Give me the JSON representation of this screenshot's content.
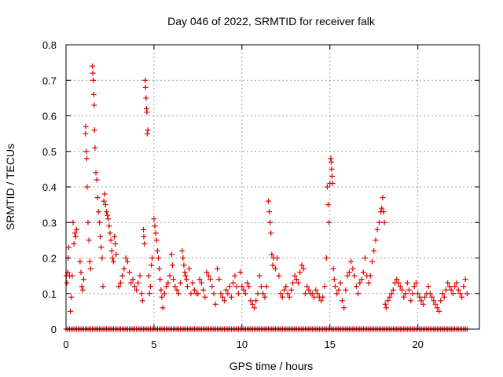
{
  "chart_data": {
    "type": "scatter",
    "title": "Day 046 of 2022, SRMTID for receiver falk",
    "xlabel": "GPS time / hours",
    "ylabel": "SRMTID / TECUs",
    "xlim": [
      0,
      23.5
    ],
    "ylim": [
      0,
      0.8
    ],
    "xticks": [
      0,
      5,
      10,
      15,
      20
    ],
    "yticks": [
      0,
      0.1,
      0.2,
      0.3,
      0.4,
      0.5,
      0.6,
      0.7,
      0.8
    ],
    "xtick_labels": [
      "0",
      "5",
      "10",
      "15",
      "20"
    ],
    "ytick_labels": [
      "0",
      "0.1",
      "0.2",
      "0.3",
      "0.4",
      "0.5",
      "0.6",
      "0.7",
      "0.8"
    ],
    "grid": true,
    "marker": "+",
    "color": "#e00000",
    "zero_series": {
      "start": 0.0,
      "end": 22.8,
      "step": 0.1,
      "value": 0
    },
    "series": [
      {
        "name": "SRMTID",
        "points": [
          [
            0.02,
            0.15
          ],
          [
            0.05,
            0.13
          ],
          [
            0.1,
            0.16
          ],
          [
            0.12,
            0.2
          ],
          [
            0.15,
            0.23
          ],
          [
            0.2,
            0.15
          ],
          [
            0.25,
            0.05
          ],
          [
            0.3,
            0.09
          ],
          [
            0.35,
            0.15
          ],
          [
            0.4,
            0.3
          ],
          [
            0.45,
            0.24
          ],
          [
            0.5,
            0.27
          ],
          [
            0.55,
            0.26
          ],
          [
            0.6,
            0.28
          ],
          [
            0.8,
            0.19
          ],
          [
            0.85,
            0.16
          ],
          [
            0.9,
            0.12
          ],
          [
            0.95,
            0.11
          ],
          [
            1.0,
            0.14
          ],
          [
            1.1,
            0.55
          ],
          [
            1.12,
            0.57
          ],
          [
            1.15,
            0.5
          ],
          [
            1.18,
            0.48
          ],
          [
            1.2,
            0.4
          ],
          [
            1.25,
            0.3
          ],
          [
            1.3,
            0.25
          ],
          [
            1.35,
            0.19
          ],
          [
            1.4,
            0.17
          ],
          [
            1.5,
            0.74
          ],
          [
            1.52,
            0.72
          ],
          [
            1.55,
            0.7
          ],
          [
            1.58,
            0.66
          ],
          [
            1.6,
            0.63
          ],
          [
            1.62,
            0.56
          ],
          [
            1.65,
            0.51
          ],
          [
            1.7,
            0.44
          ],
          [
            1.75,
            0.42
          ],
          [
            1.8,
            0.37
          ],
          [
            1.85,
            0.33
          ],
          [
            1.9,
            0.3
          ],
          [
            1.95,
            0.26
          ],
          [
            2.0,
            0.23
          ],
          [
            2.05,
            0.2
          ],
          [
            2.1,
            0.12
          ],
          [
            2.15,
            0.36
          ],
          [
            2.2,
            0.38
          ],
          [
            2.25,
            0.35
          ],
          [
            2.3,
            0.33
          ],
          [
            2.35,
            0.32
          ],
          [
            2.4,
            0.31
          ],
          [
            2.45,
            0.29
          ],
          [
            2.5,
            0.27
          ],
          [
            2.55,
            0.25
          ],
          [
            2.6,
            0.22
          ],
          [
            2.65,
            0.2
          ],
          [
            2.7,
            0.19
          ],
          [
            2.75,
            0.26
          ],
          [
            2.8,
            0.24
          ],
          [
            2.85,
            0.21
          ],
          [
            3.0,
            0.12
          ],
          [
            3.1,
            0.13
          ],
          [
            3.2,
            0.15
          ],
          [
            3.3,
            0.17
          ],
          [
            3.4,
            0.2
          ],
          [
            3.5,
            0.19
          ],
          [
            3.6,
            0.16
          ],
          [
            3.7,
            0.13
          ],
          [
            3.8,
            0.14
          ],
          [
            3.9,
            0.12
          ],
          [
            4.0,
            0.11
          ],
          [
            4.1,
            0.13
          ],
          [
            4.2,
            0.15
          ],
          [
            4.3,
            0.1
          ],
          [
            4.35,
            0.08
          ],
          [
            4.4,
            0.28
          ],
          [
            4.42,
            0.26
          ],
          [
            4.45,
            0.24
          ],
          [
            4.5,
            0.7
          ],
          [
            4.52,
            0.68
          ],
          [
            4.55,
            0.65
          ],
          [
            4.58,
            0.62
          ],
          [
            4.6,
            0.61
          ],
          [
            4.62,
            0.55
          ],
          [
            4.65,
            0.56
          ],
          [
            4.7,
            0.15
          ],
          [
            4.75,
            0.1
          ],
          [
            4.8,
            0.12
          ],
          [
            4.85,
            0.18
          ],
          [
            4.9,
            0.2
          ],
          [
            5.0,
            0.31
          ],
          [
            5.05,
            0.29
          ],
          [
            5.1,
            0.27
          ],
          [
            5.15,
            0.25
          ],
          [
            5.2,
            0.22
          ],
          [
            5.25,
            0.2
          ],
          [
            5.3,
            0.17
          ],
          [
            5.35,
            0.14
          ],
          [
            5.4,
            0.11
          ],
          [
            5.45,
            0.09
          ],
          [
            5.5,
            0.06
          ],
          [
            5.6,
            0.1
          ],
          [
            5.7,
            0.12
          ],
          [
            5.8,
            0.13
          ],
          [
            5.9,
            0.15
          ],
          [
            6.0,
            0.21
          ],
          [
            6.05,
            0.18
          ],
          [
            6.1,
            0.14
          ],
          [
            6.2,
            0.12
          ],
          [
            6.3,
            0.11
          ],
          [
            6.4,
            0.1
          ],
          [
            6.5,
            0.13
          ],
          [
            6.6,
            0.22
          ],
          [
            6.65,
            0.2
          ],
          [
            6.7,
            0.18
          ],
          [
            6.75,
            0.16
          ],
          [
            6.8,
            0.15
          ],
          [
            6.85,
            0.14
          ],
          [
            6.9,
            0.12
          ],
          [
            7.0,
            0.17
          ],
          [
            7.1,
            0.1
          ],
          [
            7.2,
            0.13
          ],
          [
            7.3,
            0.11
          ],
          [
            7.4,
            0.1
          ],
          [
            7.5,
            0.1
          ],
          [
            7.6,
            0.14
          ],
          [
            7.7,
            0.13
          ],
          [
            7.8,
            0.11
          ],
          [
            7.9,
            0.09
          ],
          [
            8.0,
            0.16
          ],
          [
            8.1,
            0.15
          ],
          [
            8.2,
            0.14
          ],
          [
            8.3,
            0.12
          ],
          [
            8.4,
            0.1
          ],
          [
            8.5,
            0.07
          ],
          [
            8.6,
            0.17
          ],
          [
            8.7,
            0.14
          ],
          [
            8.8,
            0.1
          ],
          [
            8.9,
            0.09
          ],
          [
            9.0,
            0.08
          ],
          [
            9.1,
            0.11
          ],
          [
            9.2,
            0.1
          ],
          [
            9.3,
            0.12
          ],
          [
            9.4,
            0.09
          ],
          [
            9.5,
            0.13
          ],
          [
            9.6,
            0.15
          ],
          [
            9.7,
            0.12
          ],
          [
            9.8,
            0.1
          ],
          [
            9.9,
            0.16
          ],
          [
            10.0,
            0.12
          ],
          [
            10.1,
            0.11
          ],
          [
            10.2,
            0.1
          ],
          [
            10.3,
            0.13
          ],
          [
            10.4,
            0.12
          ],
          [
            10.5,
            0.08
          ],
          [
            10.6,
            0.07
          ],
          [
            10.7,
            0.06
          ],
          [
            10.8,
            0.08
          ],
          [
            10.9,
            0.1
          ],
          [
            11.0,
            0.15
          ],
          [
            11.1,
            0.12
          ],
          [
            11.2,
            0.1
          ],
          [
            11.3,
            0.09
          ],
          [
            11.4,
            0.12
          ],
          [
            11.5,
            0.36
          ],
          [
            11.55,
            0.33
          ],
          [
            11.6,
            0.3
          ],
          [
            11.65,
            0.27
          ],
          [
            11.7,
            0.21
          ],
          [
            11.75,
            0.18
          ],
          [
            11.8,
            0.2
          ],
          [
            11.9,
            0.17
          ],
          [
            12.0,
            0.2
          ],
          [
            12.1,
            0.15
          ],
          [
            12.2,
            0.1
          ],
          [
            12.3,
            0.09
          ],
          [
            12.4,
            0.11
          ],
          [
            12.5,
            0.12
          ],
          [
            12.6,
            0.1
          ],
          [
            12.7,
            0.09
          ],
          [
            12.8,
            0.11
          ],
          [
            12.9,
            0.13
          ],
          [
            13.0,
            0.15
          ],
          [
            13.1,
            0.14
          ],
          [
            13.2,
            0.13
          ],
          [
            13.3,
            0.16
          ],
          [
            13.4,
            0.18
          ],
          [
            13.5,
            0.17
          ],
          [
            13.6,
            0.1
          ],
          [
            13.7,
            0.12
          ],
          [
            13.8,
            0.11
          ],
          [
            13.9,
            0.1
          ],
          [
            14.0,
            0.1
          ],
          [
            14.1,
            0.09
          ],
          [
            14.2,
            0.11
          ],
          [
            14.3,
            0.1
          ],
          [
            14.4,
            0.09
          ],
          [
            14.5,
            0.08
          ],
          [
            14.6,
            0.09
          ],
          [
            14.7,
            0.12
          ],
          [
            14.8,
            0.2
          ],
          [
            14.85,
            0.4
          ],
          [
            14.9,
            0.35
          ],
          [
            14.95,
            0.3
          ],
          [
            15.0,
            0.41
          ],
          [
            15.05,
            0.48
          ],
          [
            15.08,
            0.47
          ],
          [
            15.1,
            0.45
          ],
          [
            15.12,
            0.43
          ],
          [
            15.15,
            0.41
          ],
          [
            15.2,
            0.17
          ],
          [
            15.25,
            0.14
          ],
          [
            15.3,
            0.12
          ],
          [
            15.4,
            0.1
          ],
          [
            15.5,
            0.11
          ],
          [
            15.6,
            0.13
          ],
          [
            15.7,
            0.08
          ],
          [
            15.8,
            0.06
          ],
          [
            15.9,
            0.11
          ],
          [
            16.0,
            0.15
          ],
          [
            16.1,
            0.16
          ],
          [
            16.2,
            0.19
          ],
          [
            16.3,
            0.17
          ],
          [
            16.4,
            0.15
          ],
          [
            16.5,
            0.12
          ],
          [
            16.6,
            0.1
          ],
          [
            16.7,
            0.13
          ],
          [
            16.8,
            0.14
          ],
          [
            16.9,
            0.16
          ],
          [
            17.0,
            0.2
          ],
          [
            17.1,
            0.15
          ],
          [
            17.2,
            0.13
          ],
          [
            17.3,
            0.15
          ],
          [
            17.4,
            0.19
          ],
          [
            17.5,
            0.22
          ],
          [
            17.6,
            0.25
          ],
          [
            17.7,
            0.28
          ],
          [
            17.8,
            0.3
          ],
          [
            17.9,
            0.33
          ],
          [
            17.95,
            0.34
          ],
          [
            18.0,
            0.37
          ],
          [
            18.05,
            0.33
          ],
          [
            18.1,
            0.3
          ],
          [
            18.15,
            0.07
          ],
          [
            18.2,
            0.06
          ],
          [
            18.3,
            0.08
          ],
          [
            18.4,
            0.09
          ],
          [
            18.5,
            0.1
          ],
          [
            18.6,
            0.11
          ],
          [
            18.7,
            0.13
          ],
          [
            18.8,
            0.14
          ],
          [
            18.9,
            0.13
          ],
          [
            19.0,
            0.12
          ],
          [
            19.1,
            0.11
          ],
          [
            19.2,
            0.09
          ],
          [
            19.3,
            0.1
          ],
          [
            19.4,
            0.13
          ],
          [
            19.5,
            0.11
          ],
          [
            19.6,
            0.08
          ],
          [
            19.7,
            0.1
          ],
          [
            19.8,
            0.12
          ],
          [
            19.9,
            0.13
          ],
          [
            20.0,
            0.1
          ],
          [
            20.1,
            0.09
          ],
          [
            20.2,
            0.08
          ],
          [
            20.3,
            0.07
          ],
          [
            20.4,
            0.09
          ],
          [
            20.5,
            0.1
          ],
          [
            20.6,
            0.12
          ],
          [
            20.7,
            0.1
          ],
          [
            20.8,
            0.09
          ],
          [
            20.9,
            0.08
          ],
          [
            21.0,
            0.07
          ],
          [
            21.1,
            0.06
          ],
          [
            21.2,
            0.05
          ],
          [
            21.3,
            0.08
          ],
          [
            21.4,
            0.1
          ],
          [
            21.5,
            0.09
          ],
          [
            21.6,
            0.11
          ],
          [
            21.7,
            0.13
          ],
          [
            21.8,
            0.12
          ],
          [
            21.9,
            0.11
          ],
          [
            22.0,
            0.1
          ],
          [
            22.1,
            0.12
          ],
          [
            22.2,
            0.13
          ],
          [
            22.3,
            0.11
          ],
          [
            22.4,
            0.1
          ],
          [
            22.5,
            0.09
          ],
          [
            22.6,
            0.12
          ],
          [
            22.7,
            0.14
          ],
          [
            22.8,
            0.1
          ]
        ]
      }
    ]
  }
}
